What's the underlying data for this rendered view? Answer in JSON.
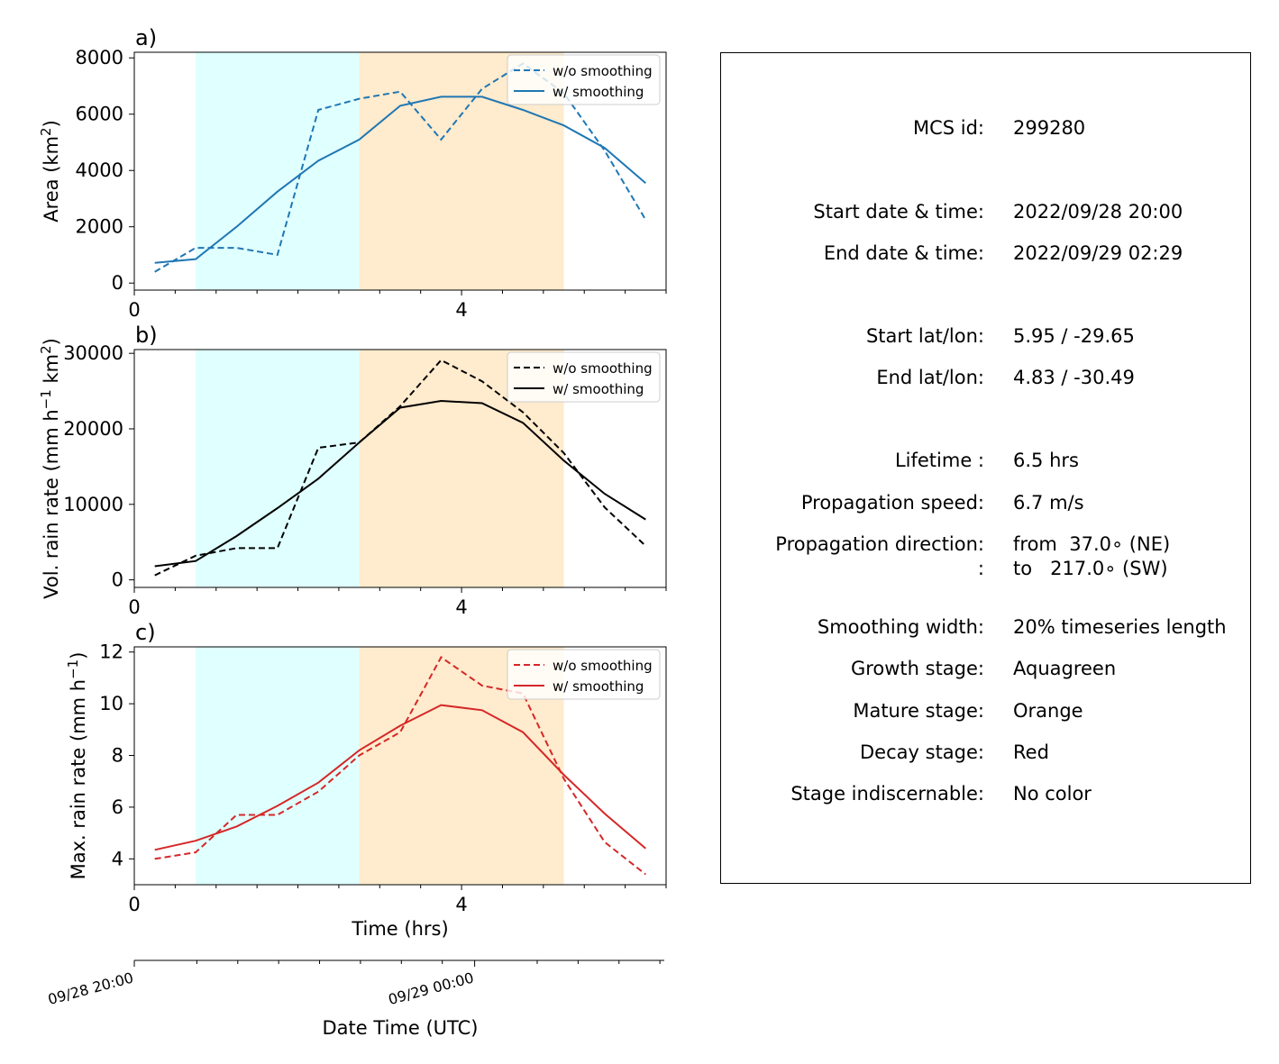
{
  "colors": {
    "growth_shade": "#e0ffff",
    "mature_shade": "#ffebcd",
    "area": "#1f77b4",
    "volrain": "#000000",
    "maxrain": "#d62728"
  },
  "time_axis": {
    "xlabel": "Time (hrs)",
    "ticks": [
      "0",
      "4"
    ],
    "xlim": [
      0,
      6.5
    ],
    "growth_stage_hrs": [
      0.75,
      2.75
    ],
    "mature_stage_hrs": [
      2.75,
      5.25
    ]
  },
  "date_axis": {
    "label": "Date Time (UTC)",
    "ticks": [
      {
        "label": "09/28 20:00",
        "hrs": 0
      },
      {
        "label": "09/29 00:00",
        "hrs": 4.16
      }
    ]
  },
  "chart_data": [
    {
      "type": "line",
      "panel_label": "a)",
      "title": "",
      "xlabel": "",
      "ylabel_main": "Area  (km",
      "ylabel_sup": "2",
      "ylabel_end": ")",
      "ylim": [
        0,
        8000
      ],
      "yticks": [
        "0",
        "2000",
        "4000",
        "6000",
        "8000"
      ],
      "x": [
        0.25,
        0.75,
        1.25,
        1.75,
        2.25,
        2.75,
        3.25,
        3.75,
        4.25,
        4.75,
        5.25,
        5.75,
        6.25
      ],
      "series": [
        {
          "name": "w/o smoothing",
          "dash": true,
          "values": [
            400,
            1250,
            1250,
            1000,
            6150,
            6550,
            6800,
            5100,
            6900,
            7800,
            6750,
            4700,
            2250
          ]
        },
        {
          "name": "w/ smoothing",
          "dash": false,
          "values": [
            720,
            850,
            2000,
            3250,
            4350,
            5100,
            6300,
            6620,
            6620,
            6150,
            5600,
            4800,
            3550
          ]
        }
      ],
      "legend": "upper right"
    },
    {
      "type": "line",
      "panel_label": "b)",
      "title": "",
      "xlabel": "",
      "ylabel_main": "Vol. rain rate (mm h",
      "ylabel_sup": "−1",
      "ylabel_mid": " km",
      "ylabel_sup2": "2",
      "ylabel_end": ")",
      "ylim": [
        -1000,
        30000
      ],
      "yticks": [
        "0",
        "10000",
        "20000",
        "30000"
      ],
      "ytick_values": [
        0,
        10000,
        20000,
        30000
      ],
      "x": [
        0.25,
        0.75,
        1.25,
        1.75,
        2.25,
        2.75,
        3.25,
        3.75,
        4.25,
        4.75,
        5.25,
        5.75,
        6.25
      ],
      "series": [
        {
          "name": "w/o smoothing",
          "dash": true,
          "values": [
            600,
            3200,
            4200,
            4200,
            17500,
            18200,
            23000,
            29100,
            26300,
            22200,
            16800,
            9600,
            4500
          ]
        },
        {
          "name": "w/ smoothing",
          "dash": false,
          "values": [
            1800,
            2500,
            5800,
            9500,
            13400,
            18200,
            22800,
            23700,
            23400,
            20800,
            15800,
            11400,
            8000
          ]
        }
      ],
      "legend": "upper right"
    },
    {
      "type": "line",
      "panel_label": "c)",
      "title": "",
      "xlabel": "Time (hrs)",
      "ylabel_main": "Max. rain rate  (mm h",
      "ylabel_sup": "−1",
      "ylabel_end": ")",
      "ylim": [
        3,
        12.2
      ],
      "yticks": [
        "4",
        "6",
        "8",
        "10",
        "12"
      ],
      "ytick_values": [
        4,
        6,
        8,
        10,
        12
      ],
      "x": [
        0.25,
        0.75,
        1.25,
        1.75,
        2.25,
        2.75,
        3.25,
        3.75,
        4.25,
        4.75,
        5.25,
        5.75,
        6.25
      ],
      "series": [
        {
          "name": "w/o smoothing",
          "dash": true,
          "values": [
            4.0,
            4.25,
            5.7,
            5.7,
            6.6,
            8.0,
            8.9,
            11.8,
            10.7,
            10.4,
            7.1,
            4.65,
            3.4
          ]
        },
        {
          "name": "w/ smoothing",
          "dash": false,
          "values": [
            4.35,
            4.7,
            5.25,
            6.05,
            6.95,
            8.2,
            9.15,
            9.95,
            9.75,
            8.9,
            7.25,
            5.75,
            4.4
          ]
        }
      ],
      "legend": "upper right"
    }
  ],
  "info": {
    "rows": [
      {
        "label": "MCS id:",
        "value": "299280"
      },
      {
        "label": "Start date & time:",
        "value": "2022/09/28 20:00"
      },
      {
        "label": "End date & time:",
        "value": "2022/09/29 02:29"
      },
      {
        "label": "Start lat/lon:",
        "value": "5.95 / -29.65"
      },
      {
        "label": "End lat/lon:",
        "value": "4.83 / -30.49"
      },
      {
        "label": "Lifetime :",
        "value": "6.5 hrs"
      },
      {
        "label": "Propagation speed:",
        "value": "6.7 m/s"
      },
      {
        "label": "Propagation direction:",
        "value": "from  37.0∘ (NE)"
      },
      {
        "label": ":",
        "value": "to   217.0∘ (SW)"
      },
      {
        "label": "Smoothing width:",
        "value": "20% timeseries length"
      },
      {
        "label": "Growth stage:",
        "value": "Aquagreen"
      },
      {
        "label": "Mature stage:",
        "value": "Orange"
      },
      {
        "label": "Decay stage:",
        "value": "Red"
      },
      {
        "label": "Stage indiscernable:",
        "value": "No color"
      }
    ]
  }
}
